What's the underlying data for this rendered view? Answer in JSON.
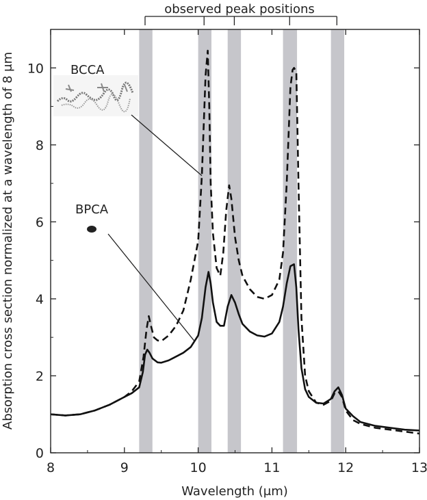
{
  "chart_data": {
    "type": "line",
    "title": "",
    "xlabel": "Wavelength (μm)",
    "ylabel": "Absorption cross section normalized at a wavelength of 8 μm",
    "xlim": [
      8,
      13
    ],
    "ylim": [
      0,
      11
    ],
    "x_ticks": [
      8,
      9,
      10,
      11,
      12,
      13
    ],
    "y_ticks": [
      0,
      2,
      4,
      6,
      8,
      10
    ],
    "grid": false,
    "legend": "none",
    "bracket_label": "observed peak positions",
    "observed_bands": [
      {
        "from": 9.2,
        "to": 9.38
      },
      {
        "from": 10.0,
        "to": 10.18
      },
      {
        "from": 10.4,
        "to": 10.58
      },
      {
        "from": 11.15,
        "to": 11.34
      },
      {
        "from": 11.8,
        "to": 11.98
      }
    ],
    "bracket_peaks": [
      9.28,
      10.08,
      10.49,
      11.24,
      11.88
    ],
    "annotations": [
      {
        "label": "BCCA",
        "target_series": "BCCA",
        "target_x": 10.05
      },
      {
        "label": "BPCA",
        "target_series": "BPCA",
        "target_x": 9.95
      }
    ],
    "series": [
      {
        "name": "BCCA",
        "style": "dashed",
        "color": "#111111",
        "x": [
          8.0,
          8.2,
          8.4,
          8.6,
          8.8,
          9.0,
          9.1,
          9.2,
          9.26,
          9.3,
          9.33,
          9.36,
          9.4,
          9.45,
          9.5,
          9.6,
          9.7,
          9.8,
          9.9,
          10.0,
          10.05,
          10.1,
          10.13,
          10.15,
          10.17,
          10.2,
          10.25,
          10.3,
          10.34,
          10.38,
          10.42,
          10.45,
          10.5,
          10.55,
          10.6,
          10.7,
          10.8,
          10.9,
          11.0,
          11.1,
          11.15,
          11.2,
          11.25,
          11.28,
          11.3,
          11.33,
          11.36,
          11.4,
          11.45,
          11.5,
          11.6,
          11.7,
          11.8,
          11.85,
          11.9,
          11.95,
          12.0,
          12.1,
          12.2,
          12.4,
          12.6,
          12.8,
          13.0
        ],
        "y": [
          1.0,
          0.97,
          1.0,
          1.1,
          1.25,
          1.45,
          1.6,
          1.85,
          2.5,
          3.2,
          3.55,
          3.3,
          3.0,
          2.92,
          2.9,
          3.05,
          3.3,
          3.7,
          4.5,
          5.5,
          7.2,
          9.8,
          10.45,
          9.0,
          7.0,
          5.7,
          4.8,
          4.6,
          5.2,
          6.3,
          6.95,
          6.6,
          5.6,
          5.0,
          4.6,
          4.25,
          4.05,
          4.0,
          4.1,
          4.5,
          5.2,
          7.0,
          9.5,
          9.95,
          10.0,
          9.9,
          7.0,
          3.5,
          2.0,
          1.6,
          1.3,
          1.25,
          1.35,
          1.55,
          1.6,
          1.45,
          1.1,
          0.85,
          0.75,
          0.65,
          0.6,
          0.55,
          0.5
        ]
      },
      {
        "name": "BPCA",
        "style": "solid",
        "color": "#111111",
        "x": [
          8.0,
          8.2,
          8.4,
          8.6,
          8.8,
          9.0,
          9.1,
          9.2,
          9.25,
          9.28,
          9.31,
          9.34,
          9.38,
          9.45,
          9.5,
          9.6,
          9.7,
          9.8,
          9.9,
          10.0,
          10.05,
          10.1,
          10.14,
          10.17,
          10.2,
          10.25,
          10.3,
          10.35,
          10.4,
          10.45,
          10.5,
          10.55,
          10.6,
          10.7,
          10.8,
          10.9,
          11.0,
          11.1,
          11.15,
          11.2,
          11.25,
          11.3,
          11.33,
          11.36,
          11.4,
          11.45,
          11.5,
          11.6,
          11.7,
          11.8,
          11.85,
          11.9,
          11.95,
          12.0,
          12.1,
          12.2,
          12.4,
          12.6,
          12.8,
          13.0
        ],
        "y": [
          1.0,
          0.97,
          1.0,
          1.1,
          1.25,
          1.45,
          1.55,
          1.7,
          2.1,
          2.55,
          2.68,
          2.6,
          2.45,
          2.35,
          2.34,
          2.4,
          2.5,
          2.6,
          2.75,
          3.05,
          3.5,
          4.3,
          4.7,
          4.4,
          3.9,
          3.4,
          3.3,
          3.3,
          3.8,
          4.1,
          3.9,
          3.6,
          3.35,
          3.15,
          3.05,
          3.02,
          3.1,
          3.4,
          3.8,
          4.4,
          4.85,
          4.9,
          4.3,
          3.2,
          2.2,
          1.65,
          1.45,
          1.3,
          1.28,
          1.4,
          1.6,
          1.7,
          1.5,
          1.15,
          0.95,
          0.8,
          0.7,
          0.65,
          0.6,
          0.58
        ]
      }
    ]
  }
}
